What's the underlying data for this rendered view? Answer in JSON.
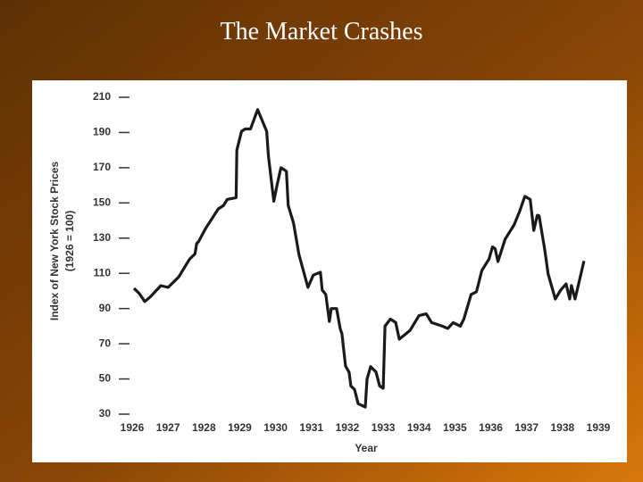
{
  "chart_data": {
    "type": "line",
    "title": "The Market Crashes",
    "xlabel": "Year",
    "ylabel": "Index of New York Stock Prices",
    "ylabel_note": "(1926 = 100)",
    "color": "#1a1a1a",
    "x": [
      1926.05,
      1926.2,
      1926.35,
      1926.5,
      1926.8,
      1927.0,
      1927.3,
      1927.6,
      1927.75,
      1927.8,
      1927.85,
      1928.05,
      1928.4,
      1928.55,
      1928.65,
      1928.9,
      1928.92,
      1929.05,
      1929.15,
      1929.3,
      1929.5,
      1929.6,
      1929.75,
      1929.8,
      1929.95,
      1930.05,
      1930.15,
      1930.3,
      1930.35,
      1930.5,
      1930.65,
      1930.9,
      1931.05,
      1931.25,
      1931.3,
      1931.4,
      1931.5,
      1931.55,
      1931.7,
      1931.8,
      1931.85,
      1931.95,
      1932.05,
      1932.1,
      1932.2,
      1932.3,
      1932.5,
      1932.55,
      1932.65,
      1932.8,
      1932.9,
      1933.0,
      1933.05,
      1933.2,
      1933.35,
      1933.45,
      1933.75,
      1934.0,
      1934.2,
      1934.35,
      1934.65,
      1934.8,
      1934.95,
      1935.15,
      1935.25,
      1935.45,
      1935.6,
      1935.75,
      1935.95,
      1936.05,
      1936.12,
      1936.2,
      1936.4,
      1936.65,
      1936.8,
      1936.95,
      1937.1,
      1937.2,
      1937.3,
      1937.35,
      1937.5,
      1937.6,
      1937.8,
      1937.95,
      1938.1,
      1938.2,
      1938.25,
      1938.35,
      1938.45,
      1938.6
    ],
    "values": [
      101.5,
      98.5,
      94,
      96.5,
      103,
      102,
      108,
      118,
      121,
      127,
      128,
      135.5,
      146.6,
      148.6,
      152,
      153,
      180,
      190.7,
      192,
      192,
      203,
      198,
      190.7,
      176.5,
      151,
      161,
      170,
      168,
      148.6,
      138.5,
      120.8,
      102,
      109,
      110.6,
      100.5,
      98,
      82.7,
      90,
      90,
      78.7,
      75.6,
      57.4,
      53.8,
      46,
      44,
      36,
      34,
      50,
      57,
      54,
      46,
      44.7,
      80,
      84,
      82,
      72.6,
      77.6,
      86,
      87,
      82,
      80,
      78.7,
      82,
      80,
      84,
      98,
      99.5,
      111.6,
      118,
      125,
      124,
      116.7,
      129.4,
      137.5,
      145,
      153.7,
      152,
      134.4,
      143,
      142.6,
      124,
      109.6,
      95.4,
      100.5,
      104,
      95.4,
      103,
      95.4,
      104,
      117
    ],
    "xlim": [
      1926,
      1939
    ],
    "xticks": [
      1926,
      1927,
      1928,
      1929,
      1930,
      1931,
      1932,
      1933,
      1934,
      1935,
      1936,
      1937,
      1938,
      1939
    ],
    "ylim": [
      30,
      210
    ],
    "yticks": [
      30,
      50,
      70,
      90,
      110,
      130,
      150,
      170,
      190,
      210
    ]
  }
}
